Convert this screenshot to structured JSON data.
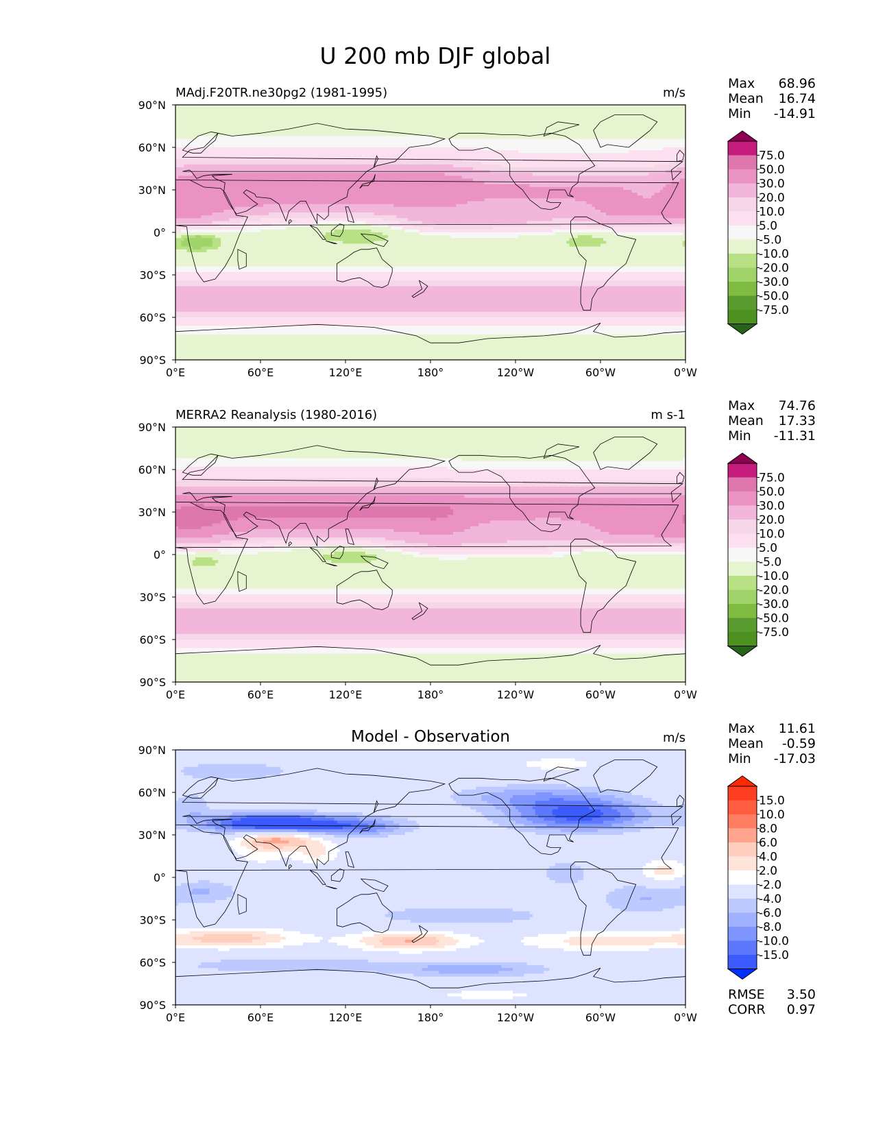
{
  "figure": {
    "title": "U 200 mb DJF global"
  },
  "chart_data": [
    {
      "type": "heatmap",
      "id": "model",
      "title": "MAdj.F20TR.ne30pg2 (1981-1995)",
      "units": "m/s",
      "xlabel": "",
      "ylabel": "",
      "x_ticks": [
        "0°E",
        "60°E",
        "120°E",
        "180°",
        "120°W",
        "60°W",
        "0°W"
      ],
      "y_ticks": [
        "90°N",
        "60°N",
        "30°N",
        "0°",
        "30°S",
        "60°S",
        "90°S"
      ],
      "xlim": [
        0,
        360
      ],
      "ylim": [
        -90,
        90
      ],
      "stats": [
        {
          "label": "Max",
          "value": "68.96"
        },
        {
          "label": "Mean",
          "value": "16.74"
        },
        {
          "label": "Min",
          "value": "-14.91"
        }
      ],
      "colorbar": {
        "labels": [
          "75.0",
          "50.0",
          "30.0",
          "20.0",
          "10.0",
          "5.0",
          "-5.0",
          "-10.0",
          "-20.0",
          "-30.0",
          "-50.0",
          "-75.0"
        ],
        "colors": [
          "#8e0152",
          "#c51b7d",
          "#de77ae",
          "#e992c3",
          "#f1b6da",
          "#f8d6ea",
          "#fde0ef",
          "#f7f7f7",
          "#e6f5d0",
          "#b8e186",
          "#a0d46b",
          "#7fbc41",
          "#5a9b2f",
          "#4d9221",
          "#276419"
        ]
      },
      "fields": {
        "bands": [
          {
            "lat": 30,
            "lon1": 20,
            "lon2": 180,
            "w": 12,
            "v": 60
          },
          {
            "lat": 28,
            "lon1": 250,
            "lon2": 300,
            "w": 10,
            "v": 40
          },
          {
            "lat": -48,
            "lon1": 0,
            "lon2": 360,
            "w": 9,
            "v": 35
          },
          {
            "lat": 8,
            "lon1": 190,
            "lon2": 240,
            "w": 6,
            "v": 22
          },
          {
            "lat": 12,
            "lon1": 320,
            "lon2": 360,
            "w": 7,
            "v": 35
          }
        ],
        "easterly": [
          {
            "lat": -6,
            "lon": 15,
            "wl": 12,
            "ww": 5,
            "v": -18
          },
          {
            "lat": 0,
            "lon": 130,
            "wl": 28,
            "ww": 6,
            "v": -12
          },
          {
            "lat": -5,
            "lon": 290,
            "wl": 14,
            "ww": 5,
            "v": -10
          }
        ]
      }
    },
    {
      "type": "heatmap",
      "id": "obs",
      "title": "MERRA2 Reanalysis (1980-2016)",
      "units": "m s-1",
      "xlabel": "",
      "ylabel": "",
      "x_ticks": [
        "0°E",
        "60°E",
        "120°E",
        "180°",
        "120°W",
        "60°W",
        "0°W"
      ],
      "y_ticks": [
        "90°N",
        "60°N",
        "30°N",
        "0°",
        "30°S",
        "60°S",
        "90°S"
      ],
      "xlim": [
        0,
        360
      ],
      "ylim": [
        -90,
        90
      ],
      "stats": [
        {
          "label": "Max",
          "value": "74.76"
        },
        {
          "label": "Mean",
          "value": "17.33"
        },
        {
          "label": "Min",
          "value": "-11.31"
        }
      ],
      "colorbar": {
        "labels": [
          "75.0",
          "50.0",
          "30.0",
          "20.0",
          "10.0",
          "5.0",
          "-5.0",
          "-10.0",
          "-20.0",
          "-30.0",
          "-50.0",
          "-75.0"
        ],
        "colors": [
          "#8e0152",
          "#c51b7d",
          "#de77ae",
          "#e992c3",
          "#f1b6da",
          "#f8d6ea",
          "#fde0ef",
          "#f7f7f7",
          "#e6f5d0",
          "#b8e186",
          "#a0d46b",
          "#7fbc41",
          "#5a9b2f",
          "#4d9221",
          "#276419"
        ]
      },
      "fields": {
        "bands": [
          {
            "lat": 30,
            "lon1": 20,
            "lon2": 180,
            "w": 12,
            "v": 66
          },
          {
            "lat": 33,
            "lon1": 250,
            "lon2": 310,
            "w": 11,
            "v": 45
          },
          {
            "lat": -47,
            "lon1": 0,
            "lon2": 360,
            "w": 9,
            "v": 32
          },
          {
            "lat": 10,
            "lon1": 190,
            "lon2": 250,
            "w": 7,
            "v": 20
          },
          {
            "lat": 15,
            "lon1": 320,
            "lon2": 360,
            "w": 7,
            "v": 32
          }
        ],
        "easterly": [
          {
            "lat": -4,
            "lon": 20,
            "wl": 10,
            "ww": 4,
            "v": -10
          },
          {
            "lat": 0,
            "lon": 125,
            "wl": 25,
            "ww": 5,
            "v": -12
          },
          {
            "lat": -3,
            "lon": 295,
            "wl": 10,
            "ww": 4,
            "v": -7
          }
        ]
      }
    },
    {
      "type": "heatmap",
      "id": "diff",
      "title": "Model - Observation",
      "units": "m/s",
      "xlabel": "",
      "ylabel": "",
      "x_ticks": [
        "0°E",
        "60°E",
        "120°E",
        "180°",
        "120°W",
        "60°W",
        "0°W"
      ],
      "y_ticks": [
        "90°N",
        "60°N",
        "30°N",
        "0°",
        "30°S",
        "60°S",
        "90°S"
      ],
      "xlim": [
        0,
        360
      ],
      "ylim": [
        -90,
        90
      ],
      "stats": [
        {
          "label": "Max",
          "value": "11.61"
        },
        {
          "label": "Mean",
          "value": "-0.59"
        },
        {
          "label": "Min",
          "value": "-17.03"
        }
      ],
      "extra_stats": [
        {
          "label": "RMSE",
          "value": "3.50"
        },
        {
          "label": "CORR",
          "value": "0.97"
        }
      ],
      "colorbar": {
        "labels": [
          "15.0",
          "10.0",
          "8.0",
          "6.0",
          "4.0",
          "2.0",
          "-2.0",
          "-4.0",
          "-6.0",
          "-8.0",
          "-10.0",
          "-15.0"
        ],
        "colors": [
          "#ff2a00",
          "#ff3d20",
          "#ff5c40",
          "#ff7d62",
          "#ffa58e",
          "#ffcebf",
          "#ffe4da",
          "#ffffff",
          "#dee4ff",
          "#bccaff",
          "#a0b2ff",
          "#7f95ff",
          "#5d78ff",
          "#3b5bff",
          "#0030ff"
        ]
      },
      "fields": {
        "blobs": [
          {
            "lat": 38,
            "lon": 65,
            "wx": 30,
            "wy": 5,
            "v": -15
          },
          {
            "lat": 36,
            "lon": 125,
            "wx": 28,
            "wy": 5,
            "v": -8
          },
          {
            "lat": 44,
            "lon": 285,
            "wx": 35,
            "wy": 8,
            "v": -11
          },
          {
            "lat": 57,
            "lon": 250,
            "wx": 40,
            "wy": 6,
            "v": -5
          },
          {
            "lat": 27,
            "lon": 75,
            "wx": 20,
            "wy": 5,
            "v": 8
          },
          {
            "lat": 17,
            "lon": 100,
            "wx": 12,
            "wy": 6,
            "v": 4
          },
          {
            "lat": -43,
            "lon": 40,
            "wx": 35,
            "wy": 5,
            "v": 7
          },
          {
            "lat": -45,
            "lon": 165,
            "wx": 28,
            "wy": 5,
            "v": 8
          },
          {
            "lat": -45,
            "lon": 300,
            "wx": 40,
            "wy": 5,
            "v": 5
          },
          {
            "lat": -62,
            "lon": 80,
            "wx": 55,
            "wy": 4,
            "v": -4
          },
          {
            "lat": -65,
            "lon": 210,
            "wx": 40,
            "wy": 4,
            "v": -5
          },
          {
            "lat": -27,
            "lon": 200,
            "wx": 45,
            "wy": 5,
            "v": -4
          },
          {
            "lat": -10,
            "lon": 20,
            "wx": 18,
            "wy": 6,
            "v": -4
          },
          {
            "lat": 4,
            "lon": 345,
            "wx": 12,
            "wy": 6,
            "v": 5
          },
          {
            "lat": 3,
            "lon": 275,
            "wx": 15,
            "wy": 8,
            "v": -3
          },
          {
            "lat": -15,
            "lon": 330,
            "wx": 22,
            "wy": 8,
            "v": -4
          },
          {
            "lat": 20,
            "lon": 60,
            "wx": 15,
            "wy": 10,
            "v": 3
          },
          {
            "lat": 75,
            "lon": 40,
            "wx": 40,
            "wy": 6,
            "v": -3
          },
          {
            "lat": 50,
            "lon": 12,
            "wx": 10,
            "wy": 8,
            "v": -3
          },
          {
            "lat": -83,
            "lon": 220,
            "wx": 30,
            "wy": 3,
            "v": 3
          },
          {
            "lat": 80,
            "lon": 270,
            "wx": 25,
            "wy": 4,
            "v": 3
          }
        ]
      }
    }
  ]
}
